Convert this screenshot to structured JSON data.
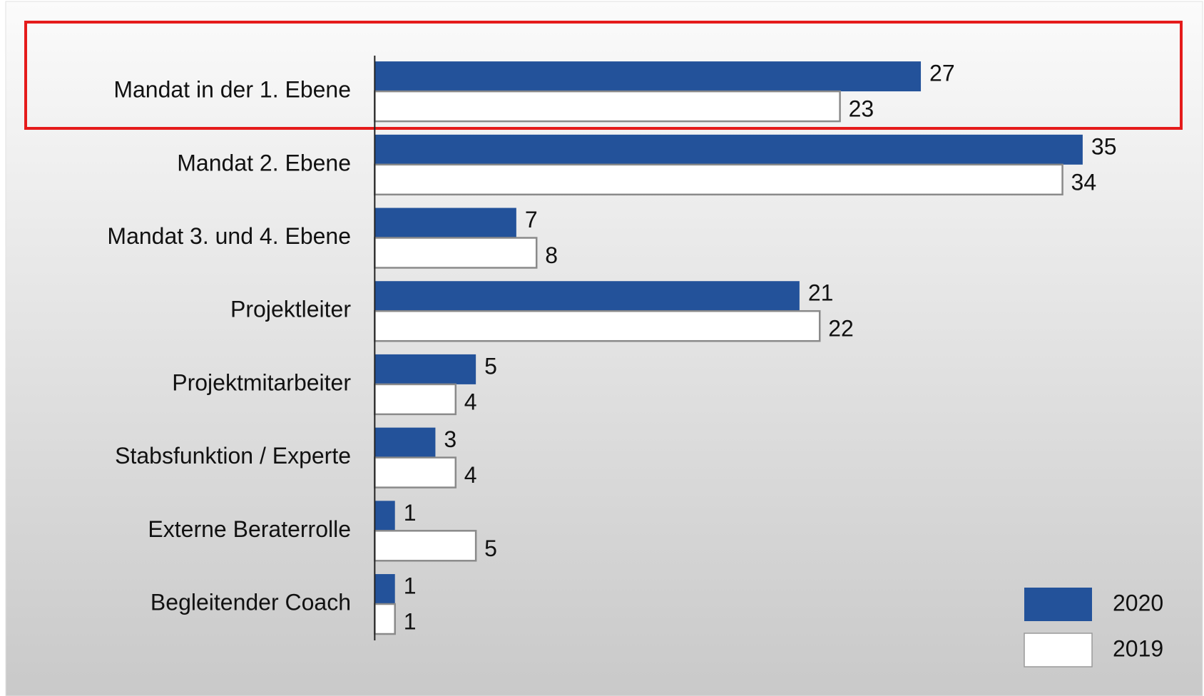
{
  "chart_data": {
    "type": "barh",
    "categories": [
      "Mandat in der 1. Ebene",
      "Mandat 2. Ebene",
      "Mandat 3. und 4. Ebene",
      "Projektleiter",
      "Projektmitarbeiter",
      "Stabsfunktion / Experte",
      "Externe Beraterrolle",
      "Begleitender Coach"
    ],
    "series": [
      {
        "name": "2020",
        "color": "#23529a",
        "values": [
          27,
          35,
          7,
          21,
          5,
          3,
          1,
          1
        ]
      },
      {
        "name": "2019",
        "color": "#ffffff",
        "values": [
          23,
          34,
          8,
          22,
          4,
          4,
          5,
          1
        ]
      }
    ],
    "legend": "bottom-right"
  }
}
